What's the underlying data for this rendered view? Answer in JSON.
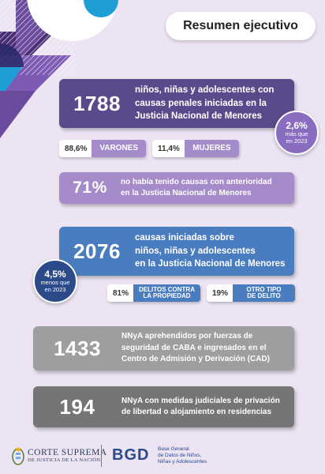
{
  "title": "Resumen ejecutivo",
  "colors": {
    "background": "#ece3f3",
    "dark_purple": "#5b4a8b",
    "light_purple": "#a58bc9",
    "blue": "#4a7cc0",
    "gray": "#9e9e9e",
    "dark_gray": "#757575",
    "accent_cyan": "#1d9fd6"
  },
  "block1": {
    "number": "1788",
    "text_line1": "niños, niñas y adolescentes con",
    "text_line2": "causas penales iniciadas en la",
    "text_line3": "Justicia Nacional de Menores",
    "bubble_pct": "2,6%",
    "bubble_line1": "más que",
    "bubble_line2": "en 2023",
    "chip1_pct": "88,6%",
    "chip1_label": "VARONES",
    "chip2_pct": "11,4%",
    "chip2_label": "MUJERES"
  },
  "block2": {
    "number": "71%",
    "text_line1": "no había tenido causas con anterioridad",
    "text_line2": "en la Justicia Nacional de Menores"
  },
  "block3": {
    "number": "2076",
    "text_line1": "causas iniciadas sobre",
    "text_line2": "niños, niñas y adolescentes",
    "text_line3": "en la Justicia Nacional de Menores",
    "bubble_pct": "4,5%",
    "bubble_line1": "menos que",
    "bubble_line2": "en 2023",
    "chip1_pct": "81%",
    "chip1_label_line1": "DELITOS CONTRA",
    "chip1_label_line2": "LA PROPIEDAD",
    "chip2_pct": "19%",
    "chip2_label_line1": "OTRO TIPO",
    "chip2_label_line2": "DE DELITO"
  },
  "block4": {
    "number": "1433",
    "text_line1": "NNyA aprehendidos por fuerzas de",
    "text_line2": "seguridad de CABA e ingresados en el",
    "text_line3": "Centro de Admisión y Derivación (CAD)"
  },
  "block5": {
    "number": "194",
    "text_line1": "NNyA con medidas judiciales de privación",
    "text_line2": "de libertad o alojamiento en residencias"
  },
  "footer": {
    "csj_line1": "CORTE SUPREMA",
    "csj_line2": "DE JUSTICIA DE LA NACIÓN",
    "bgd_logo": "BGD",
    "bgd_line1": "Base General",
    "bgd_line2": "de Datos de Niños,",
    "bgd_line3": "Niñas y Adolescentes"
  }
}
